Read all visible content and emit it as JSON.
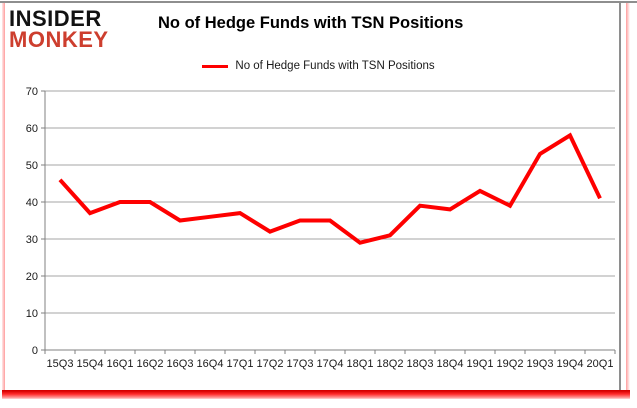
{
  "header": {
    "logo_line1": "INSIDER",
    "logo_line2": "MONKEY",
    "title": "No of Hedge Funds with TSN Positions"
  },
  "legend": {
    "label": "No of Hedge Funds with TSN Positions"
  },
  "colors": {
    "line": "#fe0000",
    "grid": "#a6a6a6",
    "axis": "#808080",
    "label_text": "#1a1a1a",
    "logo_black": "#121212",
    "logo_red": "#cd3e2e",
    "frame_gray": "#8e8e8e"
  },
  "chart_data": {
    "type": "line",
    "title": "No of Hedge Funds with TSN Positions",
    "series_name": "No of Hedge Funds with TSN Positions",
    "categories": [
      "15Q3",
      "15Q4",
      "16Q1",
      "16Q2",
      "16Q3",
      "16Q4",
      "17Q1",
      "17Q2",
      "17Q3",
      "17Q4",
      "18Q1",
      "18Q2",
      "18Q3",
      "18Q4",
      "19Q1",
      "19Q2",
      "19Q3",
      "19Q4",
      "20Q1"
    ],
    "values": [
      46,
      37,
      40,
      40,
      35,
      36,
      37,
      32,
      35,
      35,
      29,
      31,
      39,
      38,
      43,
      39,
      53,
      58,
      41
    ],
    "ylim": [
      0,
      70
    ],
    "yticks": [
      0,
      10,
      20,
      30,
      40,
      50,
      60,
      70
    ],
    "grid": true,
    "legend_position": "top-center",
    "line_color": "#fe0000"
  }
}
